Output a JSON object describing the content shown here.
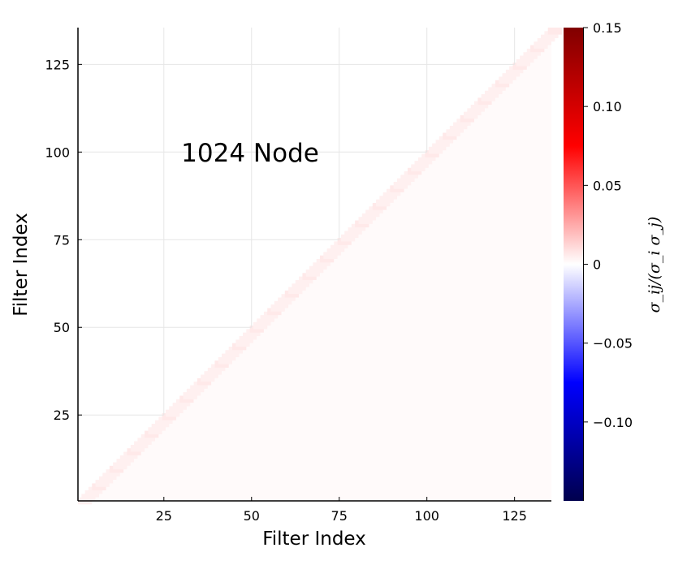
{
  "chart_data": {
    "type": "heatmap",
    "xlabel": "Filter Index",
    "ylabel": "Filter Index",
    "annotation": {
      "text": "1024 Node",
      "x": 55,
      "y": 100
    },
    "xlim": [
      0.5,
      135.5
    ],
    "ylim": [
      0.5,
      135.5
    ],
    "xticks": [
      25,
      50,
      75,
      100,
      125
    ],
    "yticks": [
      25,
      50,
      75,
      100,
      125
    ],
    "grid": true,
    "matrix_size": 135,
    "shown_triangle": "lower-right (x >= y)",
    "values_description": "near-zero positive correlations, faint pink along and below the diagonal",
    "colorbar": {
      "label": "σ_ij/(σ_i σ_j)",
      "range": [
        -0.15,
        0.15
      ],
      "ticks": [
        0.15,
        0.1,
        0.05,
        0,
        -0.05,
        -0.1
      ],
      "tick_labels": [
        "0.15",
        "0.10",
        "0.05",
        "0",
        "−0.05",
        "−0.10"
      ],
      "colors": [
        "#00004d",
        "#0000ff",
        "#ffffff",
        "#ff0000",
        "#800000"
      ]
    }
  }
}
